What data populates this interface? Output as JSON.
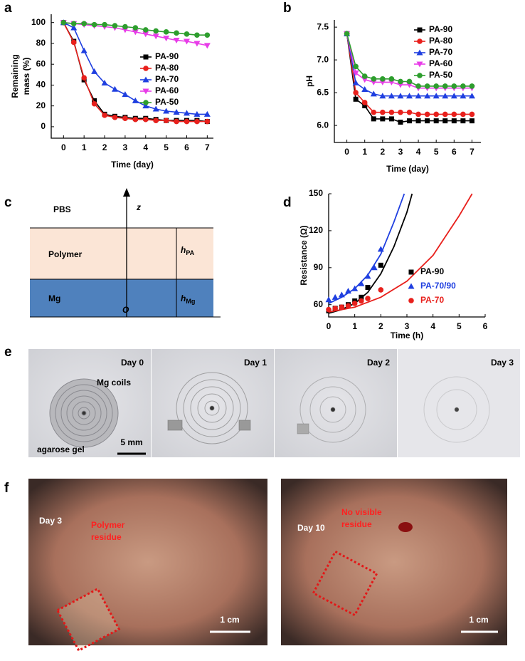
{
  "panel_labels": [
    "a",
    "b",
    "c",
    "d",
    "e",
    "f"
  ],
  "chart_data": [
    {
      "type": "line",
      "xlabel": "Time (day)",
      "ylabel": [
        "Remaining",
        "mass (%)"
      ],
      "x": [
        0,
        0.5,
        1,
        1.5,
        2,
        2.5,
        3,
        3.5,
        4,
        4.5,
        5,
        5.5,
        6,
        6.5,
        7
      ],
      "xlim": [
        -0.6,
        7.3
      ],
      "xticks": [
        0,
        1,
        2,
        3,
        4,
        5,
        6,
        7
      ],
      "ylim": [
        -11,
        108
      ],
      "yticks": [
        0,
        20,
        40,
        60,
        80,
        100
      ],
      "legend": "right",
      "grid": false,
      "series": [
        {
          "name": "PA-90",
          "color": "#000000",
          "marker": "square",
          "values": [
            100,
            82,
            45,
            25,
            12,
            10,
            9,
            8,
            8,
            7,
            6,
            6,
            6,
            6,
            5
          ]
        },
        {
          "name": "PA-80",
          "color": "#e8201c",
          "marker": "circle",
          "values": [
            100,
            81,
            47,
            22,
            11,
            9,
            8,
            7,
            7,
            6,
            6,
            5,
            5,
            5,
            5
          ]
        },
        {
          "name": "PA-70",
          "color": "#1f3fe0",
          "marker": "triangle",
          "values": [
            100,
            95,
            73,
            53,
            42,
            36,
            31,
            25,
            20,
            17,
            15,
            14,
            13,
            12,
            12
          ]
        },
        {
          "name": "PA-60",
          "color": "#e83ce8",
          "marker": "triangle-down",
          "values": [
            100,
            99,
            98,
            97,
            96,
            95,
            93,
            91,
            89,
            87,
            85,
            83,
            82,
            80,
            78
          ]
        },
        {
          "name": "PA-50",
          "color": "#2e9e2e",
          "marker": "circle",
          "values": [
            100,
            99,
            99,
            98,
            98,
            97,
            96,
            95,
            93,
            92,
            91,
            90,
            89,
            88,
            88
          ]
        }
      ]
    },
    {
      "type": "line",
      "xlabel": "Time (day)",
      "ylabel": [
        "pH"
      ],
      "x": [
        0,
        0.5,
        1,
        1.5,
        2,
        2.5,
        3,
        3.5,
        4,
        4.5,
        5,
        5.5,
        6,
        6.5,
        7
      ],
      "xlim": [
        -0.7,
        7.5
      ],
      "xticks": [
        0,
        1,
        2,
        3,
        4,
        5,
        6,
        7
      ],
      "ylim": [
        5.74,
        7.61
      ],
      "yticks": [
        {
          "value": 6,
          "label": "6.0"
        },
        6.5,
        {
          "value": 7,
          "label": "7.0"
        },
        7.5
      ],
      "legend": "upper right",
      "grid": false,
      "series": [
        {
          "name": "PA-90",
          "color": "#000000",
          "marker": "square",
          "values": [
            7.4,
            6.4,
            6.3,
            6.1,
            6.1,
            6.1,
            6.05,
            6.07,
            6.07,
            6.07,
            6.07,
            6.07,
            6.07,
            6.07,
            6.07
          ]
        },
        {
          "name": "PA-80",
          "color": "#e8201c",
          "marker": "circle",
          "values": [
            7.4,
            6.5,
            6.35,
            6.2,
            6.2,
            6.2,
            6.2,
            6.2,
            6.17,
            6.17,
            6.17,
            6.17,
            6.17,
            6.17,
            6.17
          ]
        },
        {
          "name": "PA-70",
          "color": "#1f3fe0",
          "marker": "triangle",
          "values": [
            7.4,
            6.65,
            6.55,
            6.48,
            6.45,
            6.45,
            6.45,
            6.45,
            6.45,
            6.45,
            6.45,
            6.45,
            6.45,
            6.45,
            6.45
          ]
        },
        {
          "name": "PA-60",
          "color": "#e83ce8",
          "marker": "triangle-down",
          "values": [
            7.4,
            6.8,
            6.7,
            6.66,
            6.66,
            6.66,
            6.62,
            6.62,
            6.57,
            6.57,
            6.57,
            6.57,
            6.57,
            6.57,
            6.57
          ]
        },
        {
          "name": "PA-50",
          "color": "#2e9e2e",
          "marker": "circle",
          "values": [
            7.4,
            6.9,
            6.75,
            6.71,
            6.71,
            6.71,
            6.67,
            6.67,
            6.6,
            6.6,
            6.6,
            6.6,
            6.6,
            6.6,
            6.6
          ]
        }
      ]
    },
    {
      "type": "scatter",
      "xlabel": "Time (h)",
      "ylabel": [
        "Resistance (Ω)"
      ],
      "xlim": [
        0,
        6
      ],
      "xticks": [
        0,
        1,
        2,
        3,
        4,
        5,
        6
      ],
      "ylim": [
        50,
        150
      ],
      "yticks": [
        60,
        90,
        120,
        150
      ],
      "legend": "lower right",
      "grid": false,
      "series": [
        {
          "name": "PA-90",
          "color": "#000000",
          "marker": "square",
          "x": [
            0,
            0.25,
            0.5,
            0.75,
            1,
            1.25,
            1.5,
            2
          ],
          "values": [
            55,
            57,
            58,
            60,
            63,
            66,
            74,
            92
          ],
          "fit_x": [
            0,
            0.5,
            1,
            1.5,
            2,
            2.5,
            3,
            3.2
          ],
          "fit_values": [
            53,
            56,
            61,
            70,
            85,
            107,
            135,
            150
          ]
        },
        {
          "name": "PA-70/90",
          "color": "#1f3fe0",
          "marker": "triangle",
          "x": [
            0,
            0.25,
            0.5,
            0.75,
            1,
            1.25,
            1.5,
            1.75,
            2
          ],
          "values": [
            64,
            66,
            68,
            71,
            73,
            77,
            83,
            90,
            105
          ],
          "fit_x": [
            0,
            0.5,
            1,
            1.5,
            2,
            2.5,
            2.9
          ],
          "fit_values": [
            61,
            66,
            73,
            84,
            101,
            127,
            150
          ]
        },
        {
          "name": "PA-70",
          "color": "#e8201c",
          "marker": "circle",
          "x": [
            0,
            0.25,
            0.5,
            0.75,
            1,
            1.25,
            1.5,
            2
          ],
          "values": [
            56,
            57,
            58,
            59,
            61,
            63,
            65,
            72
          ],
          "fit_x": [
            0,
            1,
            2,
            3,
            4,
            5,
            5.5
          ],
          "fit_values": [
            54,
            58,
            66,
            79,
            100,
            132,
            150
          ]
        }
      ]
    }
  ],
  "diagram": {
    "medium": "PBS",
    "axis": "z",
    "layer_top": "Polymer",
    "layer_bottom": "Mg",
    "origin": "O",
    "h_top": {
      "symbol": "h",
      "sub": "PA"
    },
    "h_bottom": {
      "symbol": "h",
      "sub": "Mg"
    }
  },
  "photos_e": {
    "days": [
      "Day 0",
      "Day 1",
      "Day 2",
      "Day 3"
    ],
    "coil_label": "Mg coils",
    "gel_label": "agarose gel",
    "scale": "5 mm"
  },
  "photos_f": [
    {
      "day": "Day 3",
      "note": [
        "Polymer",
        "residue"
      ],
      "scale": "1 cm"
    },
    {
      "day": "Day 10",
      "note": [
        "No visible",
        "residue"
      ],
      "scale": "1 cm"
    }
  ]
}
